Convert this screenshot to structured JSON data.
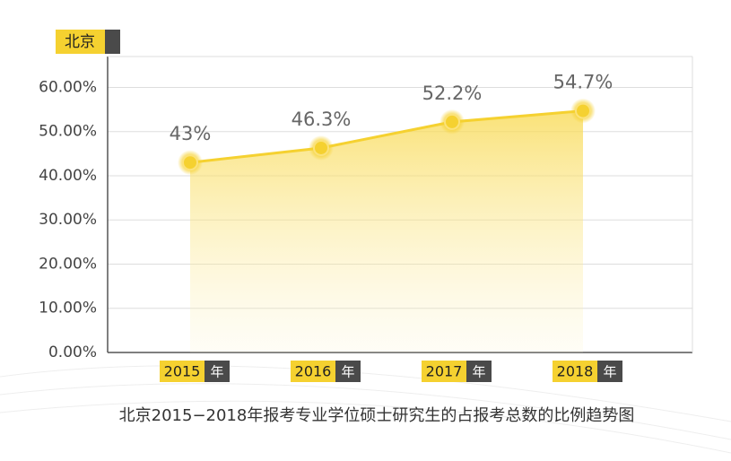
{
  "chart_data": {
    "type": "area",
    "title": "北京2015−2018年报考专业学位硕士研究生的占报考总数的比例趋势图",
    "y_label": "北京",
    "categories": [
      "2015",
      "2016",
      "2017",
      "2018"
    ],
    "category_suffix": "年",
    "values": [
      43,
      46.3,
      52.2,
      54.7
    ],
    "value_labels": [
      "43%",
      "46.3%",
      "52.2%",
      "54.7%"
    ],
    "color": "#f5d130",
    "ylim": [
      0,
      67
    ],
    "yticks": [
      {
        "value": 0,
        "label": "0.00%"
      },
      {
        "value": 10,
        "label": "10.00%"
      },
      {
        "value": 20,
        "label": "20.00%"
      },
      {
        "value": 30,
        "label": "30.00%"
      },
      {
        "value": 40,
        "label": "40.00%"
      },
      {
        "value": 50,
        "label": "50.00%"
      },
      {
        "value": 60,
        "label": "60.00%"
      }
    ],
    "grid": true
  }
}
